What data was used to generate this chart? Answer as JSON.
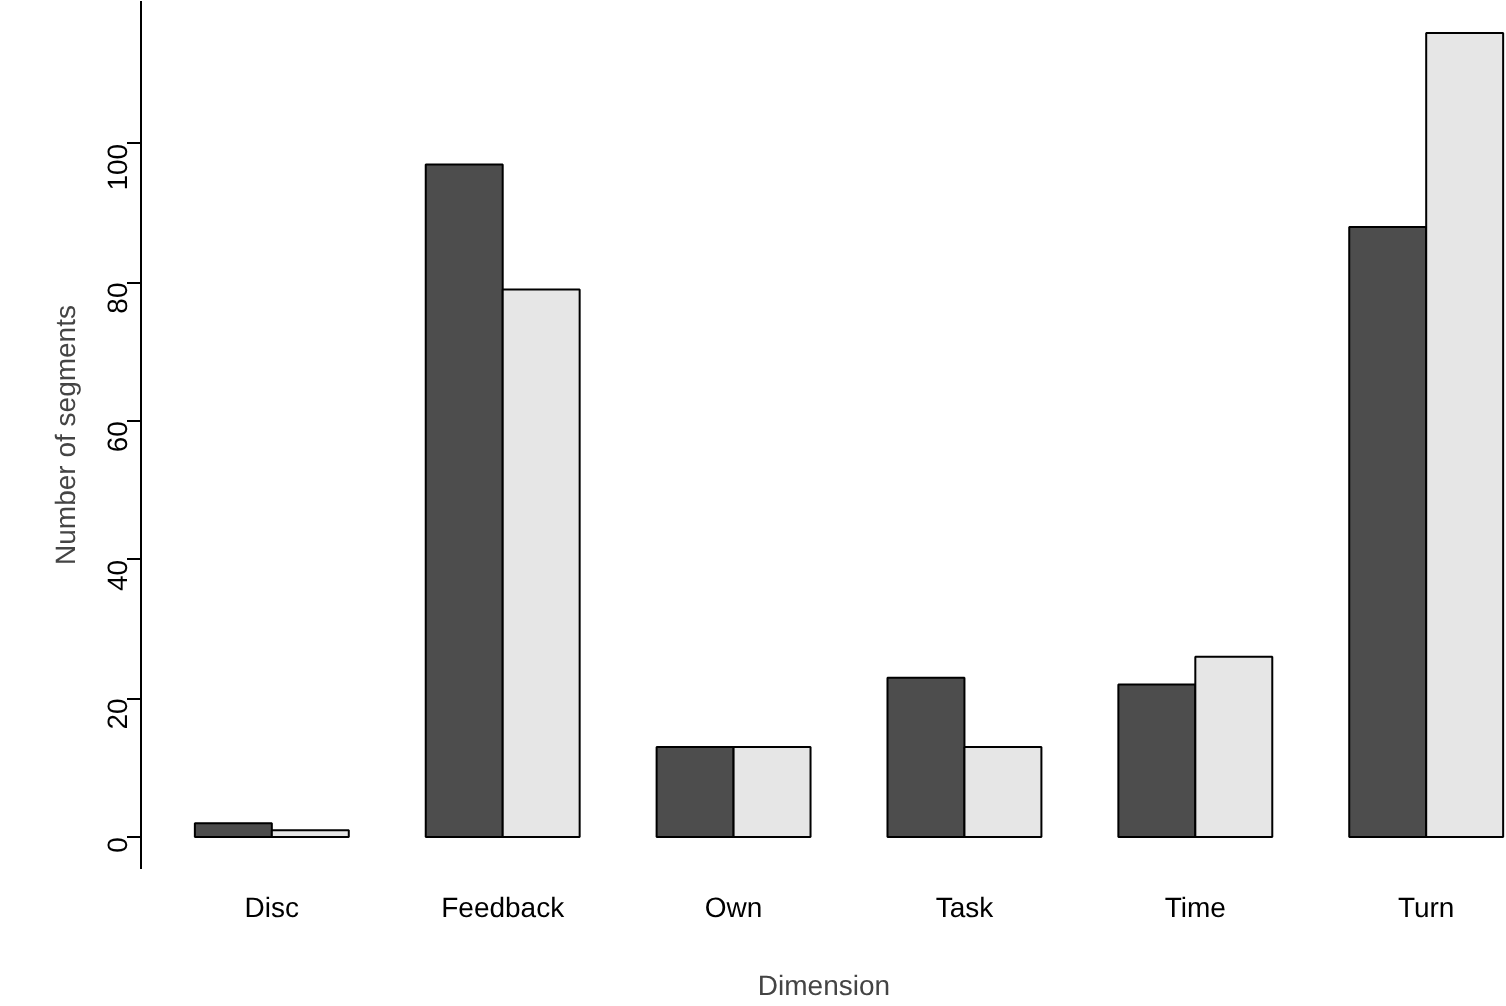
{
  "chart_data": {
    "type": "bar",
    "xlabel": "Dimension",
    "ylabel": "Number of segments",
    "categories": [
      "Disc",
      "Feedback",
      "Own",
      "Task",
      "Time",
      "Turn"
    ],
    "series": [
      {
        "color": "#4d4d4d",
        "values": [
          2,
          97,
          13,
          23,
          22,
          88
        ]
      },
      {
        "color": "#e6e6e6",
        "values": [
          1,
          79,
          13,
          13,
          26,
          116
        ]
      }
    ],
    "ylim": [
      -4.6,
      120.6
    ],
    "yticks": [
      0,
      20,
      40,
      60,
      80,
      100
    ],
    "grid": false
  }
}
